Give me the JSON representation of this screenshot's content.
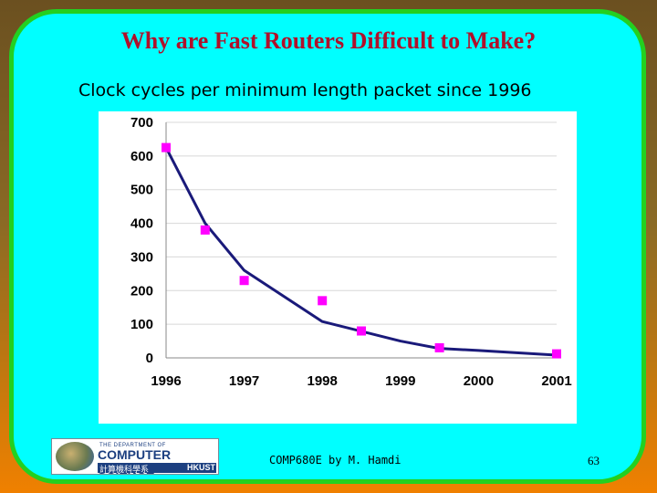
{
  "slide": {
    "title": "Why are Fast Routers Difficult to Make?",
    "subtitle": "Clock cycles per minimum length packet since 1996",
    "footer_text": "COMP680E by M. Hamdi",
    "page_number": "63"
  },
  "logo": {
    "line1": "THE DEPARTMENT OF",
    "line2": "COMPUTER SCIENCE",
    "line3_cn": "計算機科學系",
    "line3": "HKUST"
  },
  "colors": {
    "frame_fill": "#00ffff",
    "frame_border": "#23d020",
    "title": "#b0102a",
    "trend_line": "#1a1a7a",
    "marker": "#ff00ff"
  },
  "chart_data": {
    "type": "scatter",
    "title": "",
    "xlabel": "",
    "ylabel": "",
    "xlim": [
      1996,
      2001
    ],
    "ylim": [
      0,
      700
    ],
    "x_ticks": [
      1996,
      1997,
      1998,
      1999,
      2000,
      2001
    ],
    "y_ticks": [
      0,
      100,
      200,
      300,
      400,
      500,
      600,
      700
    ],
    "grid": true,
    "legend": "none",
    "series": [
      {
        "type": "scatter",
        "marker": "square",
        "color": "#ff00ff",
        "points": [
          {
            "x": 1996,
            "y": 625
          },
          {
            "x": 1996.5,
            "y": 380
          },
          {
            "x": 1997,
            "y": 230
          },
          {
            "x": 1998,
            "y": 170
          },
          {
            "x": 1998.5,
            "y": 80
          },
          {
            "x": 1999.5,
            "y": 30
          },
          {
            "x": 2001,
            "y": 12
          }
        ]
      },
      {
        "type": "line",
        "color": "#1a1a7a",
        "points": [
          {
            "x": 1996,
            "y": 625
          },
          {
            "x": 1996.5,
            "y": 400
          },
          {
            "x": 1997,
            "y": 260
          },
          {
            "x": 1998,
            "y": 108
          },
          {
            "x": 1999,
            "y": 50
          },
          {
            "x": 1999.5,
            "y": 28
          },
          {
            "x": 2000,
            "y": 22
          },
          {
            "x": 2001,
            "y": 8
          }
        ]
      }
    ]
  }
}
